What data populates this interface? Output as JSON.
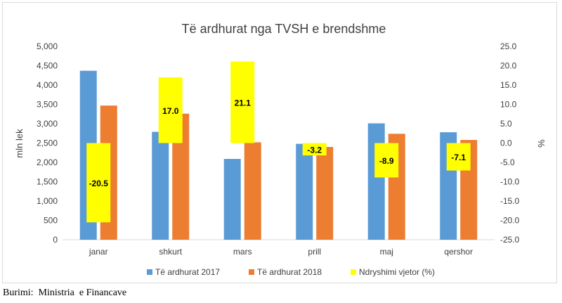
{
  "chart_data": {
    "type": "bar",
    "title": "Të ardhurat nga TVSH e brendshme",
    "ylabel": "mln lek",
    "y2label": "%",
    "categories": [
      "janar",
      "shkurt",
      "mars",
      "prill",
      "maj",
      "qershor"
    ],
    "ylim": [
      0,
      5000
    ],
    "y_ticks": [
      "0",
      "500",
      "1,000",
      "1,500",
      "2,000",
      "2,500",
      "3,000",
      "3,500",
      "4,000",
      "4,500",
      "5,000"
    ],
    "y2lim": [
      -25,
      25
    ],
    "y2_ticks": [
      "-25.0",
      "-20.0",
      "-15.0",
      "-10.0",
      "-5.0",
      "0.0",
      "5.0",
      "10.0",
      "15.0",
      "20.0",
      "25.0"
    ],
    "grid": false,
    "legend_position": "bottom",
    "series": [
      {
        "name": "Të ardhurat 2017",
        "axis": "left",
        "color": "#5b9bd5",
        "values": [
          4370,
          2790,
          2090,
          2480,
          3010,
          2780
        ]
      },
      {
        "name": "Të ardhurat 2018",
        "axis": "left",
        "color": "#ed7d31",
        "values": [
          3470,
          3260,
          2520,
          2400,
          2740,
          2580
        ]
      },
      {
        "name": "Ndryshimi vjetor (%)",
        "axis": "right",
        "color": "#ffff00",
        "values": [
          -20.5,
          17.0,
          21.1,
          -3.2,
          -8.9,
          -7.1
        ],
        "labels": [
          "-20.5",
          "17.0",
          "21.1",
          "-3.2",
          "-8.9",
          "-7.1"
        ]
      }
    ]
  },
  "source": "Burimi:  Ministria  e Financave"
}
